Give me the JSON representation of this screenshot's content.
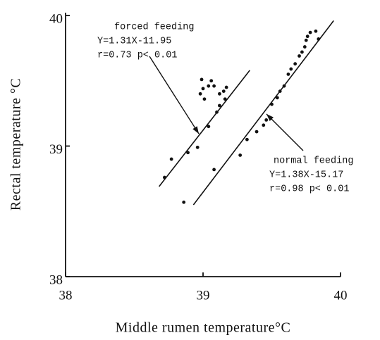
{
  "chart_data": {
    "type": "scatter",
    "xlabel": "Middle rumen temperature°C",
    "ylabel": "Rectal temperature °C",
    "xlim": [
      38,
      40
    ],
    "xticks": [
      38,
      39,
      40
    ],
    "ylim": [
      38,
      40
    ],
    "yticks": [
      38,
      39,
      40
    ],
    "series": [
      {
        "name": "forced feeding",
        "color": "#111",
        "x": [
          38.72,
          38.77,
          38.86,
          38.89,
          38.96,
          38.98,
          38.99,
          39.0,
          39.04,
          39.06,
          39.08,
          39.01,
          39.04,
          39.1,
          39.12,
          39.12,
          39.15,
          39.16,
          39.17
        ],
        "values": [
          38.76,
          38.9,
          38.57,
          38.95,
          38.99,
          39.4,
          39.51,
          39.44,
          39.46,
          39.5,
          39.46,
          39.36,
          39.15,
          39.26,
          39.4,
          39.31,
          39.42,
          39.36,
          39.45
        ],
        "fit_x": [
          38.68,
          39.34
        ],
        "fit_y": [
          38.69,
          39.58
        ],
        "annotation": [
          "Y=1.31X-11.95",
          "r=0.73  p< 0.01"
        ]
      },
      {
        "name": "normal feeding",
        "color": "#111",
        "x": [
          39.08,
          39.27,
          39.32,
          39.39,
          39.44,
          39.46,
          39.5,
          39.54,
          39.56,
          39.59,
          39.62,
          39.64,
          39.67,
          39.7,
          39.72,
          39.74,
          39.75,
          39.76,
          39.78,
          39.82,
          39.84
        ],
        "values": [
          38.82,
          38.93,
          39.05,
          39.11,
          39.16,
          39.2,
          39.32,
          39.37,
          39.42,
          39.46,
          39.55,
          39.59,
          39.63,
          39.69,
          39.72,
          39.76,
          39.81,
          39.84,
          39.87,
          39.88,
          39.82
        ],
        "fit_x": [
          38.93,
          39.95
        ],
        "fit_y": [
          38.55,
          39.96
        ],
        "annotation": [
          "Y=1.38X-15.17",
          "r=0.98  p< 0.01"
        ]
      }
    ]
  }
}
